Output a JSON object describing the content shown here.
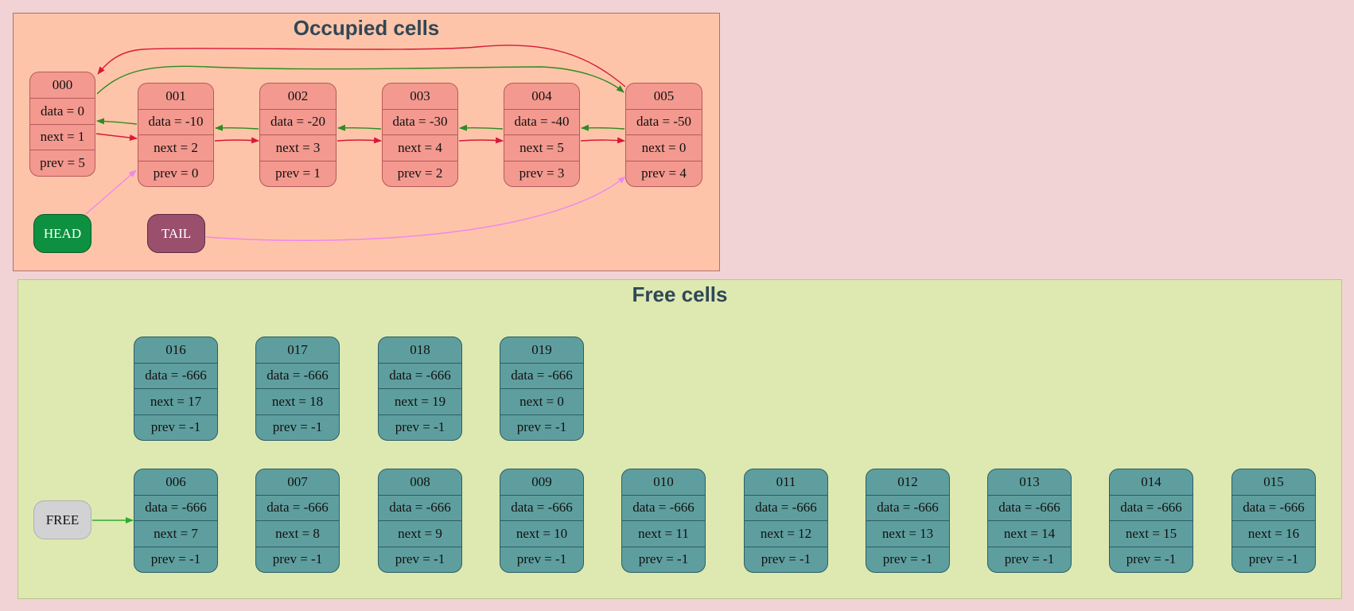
{
  "occupied": {
    "title": "Occupied cells",
    "nodes": [
      {
        "id": "000",
        "data": "data = 0",
        "next": "next = 1",
        "prev": "prev = 5"
      },
      {
        "id": "001",
        "data": "data = -10",
        "next": "next = 2",
        "prev": "prev = 0"
      },
      {
        "id": "002",
        "data": "data = -20",
        "next": "next = 3",
        "prev": "prev = 1"
      },
      {
        "id": "003",
        "data": "data = -30",
        "next": "next = 4",
        "prev": "prev = 2"
      },
      {
        "id": "004",
        "data": "data = -40",
        "next": "next = 5",
        "prev": "prev = 3"
      },
      {
        "id": "005",
        "data": "data = -50",
        "next": "next = 0",
        "prev": "prev = 4"
      }
    ],
    "head_label": "HEAD",
    "tail_label": "TAIL"
  },
  "free": {
    "title": "Free cells",
    "pointer_label": "FREE",
    "nodes": [
      {
        "id": "006",
        "data": "data = -666",
        "next": "next = 7",
        "prev": "prev = -1"
      },
      {
        "id": "007",
        "data": "data = -666",
        "next": "next = 8",
        "prev": "prev = -1"
      },
      {
        "id": "008",
        "data": "data = -666",
        "next": "next = 9",
        "prev": "prev = -1"
      },
      {
        "id": "009",
        "data": "data = -666",
        "next": "next = 10",
        "prev": "prev = -1"
      },
      {
        "id": "010",
        "data": "data = -666",
        "next": "next = 11",
        "prev": "prev = -1"
      },
      {
        "id": "011",
        "data": "data = -666",
        "next": "next = 12",
        "prev": "prev = -1"
      },
      {
        "id": "012",
        "data": "data = -666",
        "next": "next = 13",
        "prev": "prev = -1"
      },
      {
        "id": "013",
        "data": "data = -666",
        "next": "next = 14",
        "prev": "prev = -1"
      },
      {
        "id": "014",
        "data": "data = -666",
        "next": "next = 15",
        "prev": "prev = -1"
      },
      {
        "id": "015",
        "data": "data = -666",
        "next": "next = 16",
        "prev": "prev = -1"
      },
      {
        "id": "016",
        "data": "data = -666",
        "next": "next = 17",
        "prev": "prev = -1"
      },
      {
        "id": "017",
        "data": "data = -666",
        "next": "next = 18",
        "prev": "prev = -1"
      },
      {
        "id": "018",
        "data": "data = -666",
        "next": "next = 19",
        "prev": "prev = -1"
      },
      {
        "id": "019",
        "data": "data = -666",
        "next": "next = 0",
        "prev": "prev = -1"
      }
    ]
  },
  "colors": {
    "next_edge": "#d8193a",
    "prev_edge": "#2e8b22",
    "pointer_edge": "#ee88ee",
    "free_edge": "#2eab2e"
  }
}
